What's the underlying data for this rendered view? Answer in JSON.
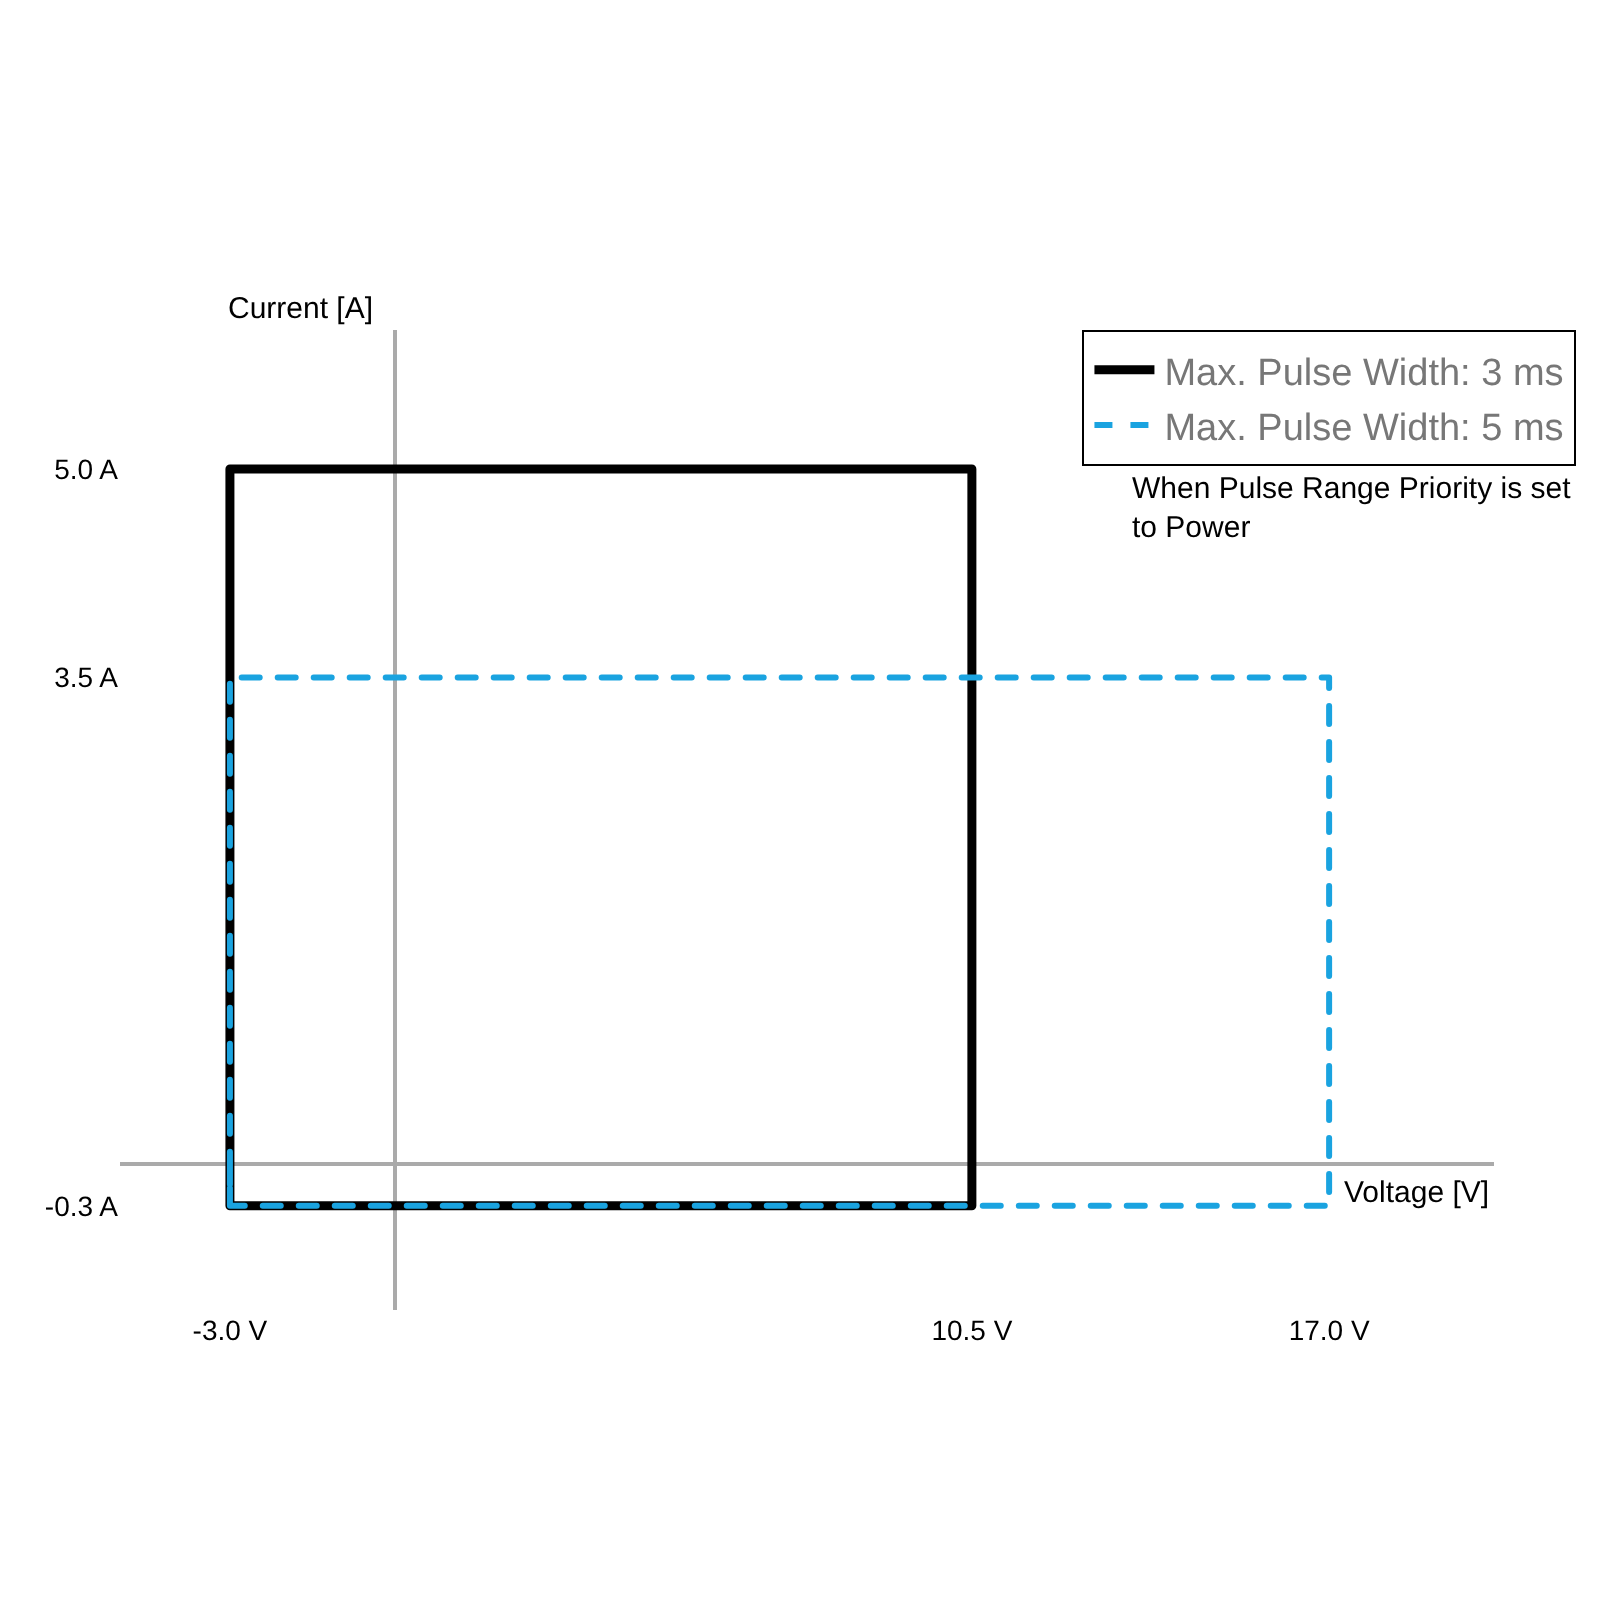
{
  "chart_data": {
    "type": "line",
    "xlabel": "Voltage [V]",
    "ylabel": "Current [A]",
    "series": [
      {
        "name": "Max. Pulse Width: 3 ms",
        "color": "#000000",
        "line_style": "solid",
        "x": [
          -3.0,
          -3.0,
          10.5,
          10.5,
          -3.0,
          -3.0
        ],
        "values": [
          -0.3,
          5.0,
          5.0,
          -0.3,
          -0.3,
          0
        ]
      },
      {
        "name": "Max. Pulse Width: 5 ms",
        "color": "#1aa3e0",
        "line_style": "dashed",
        "x": [
          -3.0,
          -3.0,
          17.0,
          17.0,
          -3.0,
          -3.0
        ],
        "values": [
          -0.3,
          3.5,
          3.5,
          -0.3,
          -0.3,
          0
        ]
      }
    ],
    "xlim": [
      -5,
      20
    ],
    "ylim": [
      -1.05,
      6
    ],
    "xticks": [
      {
        "value": -3.0,
        "label": "-3.0 V"
      },
      {
        "value": 10.5,
        "label": "10.5 V"
      },
      {
        "value": 17.0,
        "label": "17.0 V"
      }
    ],
    "yticks": [
      {
        "value": -0.3,
        "label": "-0.3 A"
      },
      {
        "value": 3.5,
        "label": "3.5 A"
      },
      {
        "value": 5.0,
        "label": "5.0 A"
      }
    ],
    "legend": "top right",
    "marker": "none",
    "annotations": [
      "When Pulse Range Priority is set to Power"
    ]
  }
}
